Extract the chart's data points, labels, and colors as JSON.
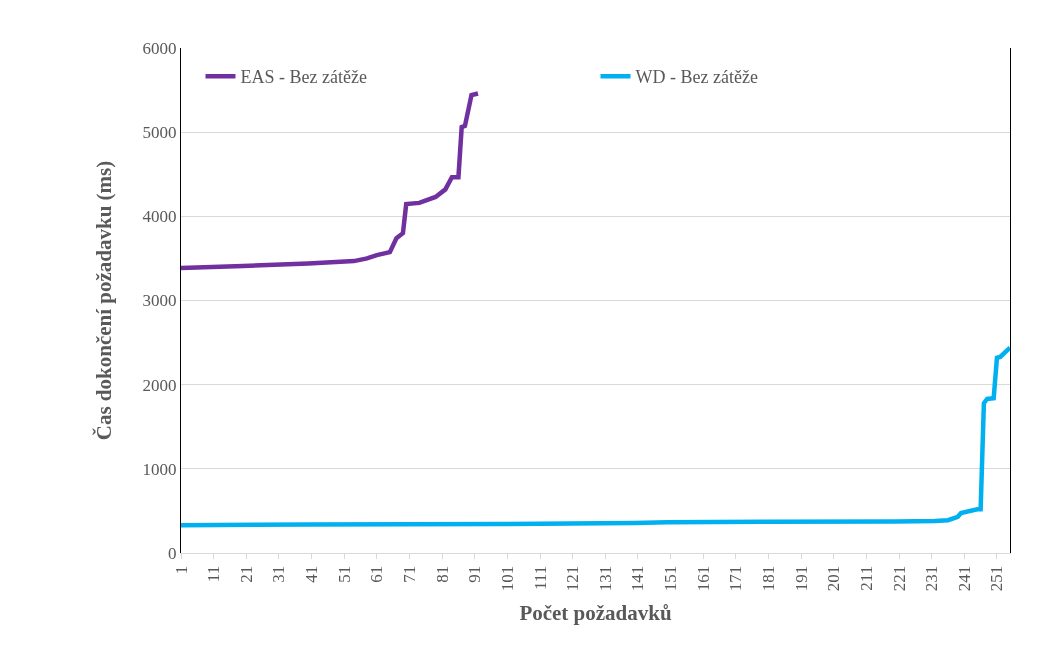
{
  "chart_data": {
    "type": "line",
    "xlabel": "Počet požadavků",
    "ylabel": "Čas dokončení požadavku (ms)",
    "xlim": [
      1,
      255
    ],
    "xticks": [
      1,
      11,
      21,
      31,
      41,
      51,
      61,
      71,
      81,
      91,
      101,
      111,
      121,
      131,
      141,
      151,
      161,
      171,
      181,
      191,
      201,
      211,
      221,
      231,
      241,
      251
    ],
    "ylim": [
      0,
      6000
    ],
    "yticks": [
      0,
      1000,
      2000,
      3000,
      4000,
      5000,
      6000
    ],
    "grid": "y",
    "legend": "top",
    "marker": "none",
    "line_style": "solid",
    "series": [
      {
        "name": "EAS - Bez zátěže",
        "color": "#7030a0",
        "x": [
          1,
          20,
          40,
          54,
          58,
          61,
          65,
          67,
          69,
          70,
          74,
          79,
          82,
          84,
          86,
          87,
          88,
          90,
          92
        ],
        "values": [
          3385,
          3410,
          3440,
          3468,
          3500,
          3540,
          3575,
          3740,
          3800,
          4145,
          4160,
          4230,
          4320,
          4465,
          4465,
          5060,
          5075,
          5440,
          5460
        ]
      },
      {
        "name": "WD - Bez zátěže",
        "color": "#00b0f0",
        "x": [
          1,
          40,
          100,
          140,
          150,
          180,
          220,
          232,
          236,
          239,
          240,
          245,
          246,
          247,
          248,
          250,
          251,
          252,
          255
        ],
        "values": [
          330,
          340,
          345,
          355,
          365,
          370,
          375,
          380,
          390,
          430,
          475,
          520,
          520,
          1780,
          1830,
          1840,
          2320,
          2330,
          2440
        ]
      }
    ]
  }
}
